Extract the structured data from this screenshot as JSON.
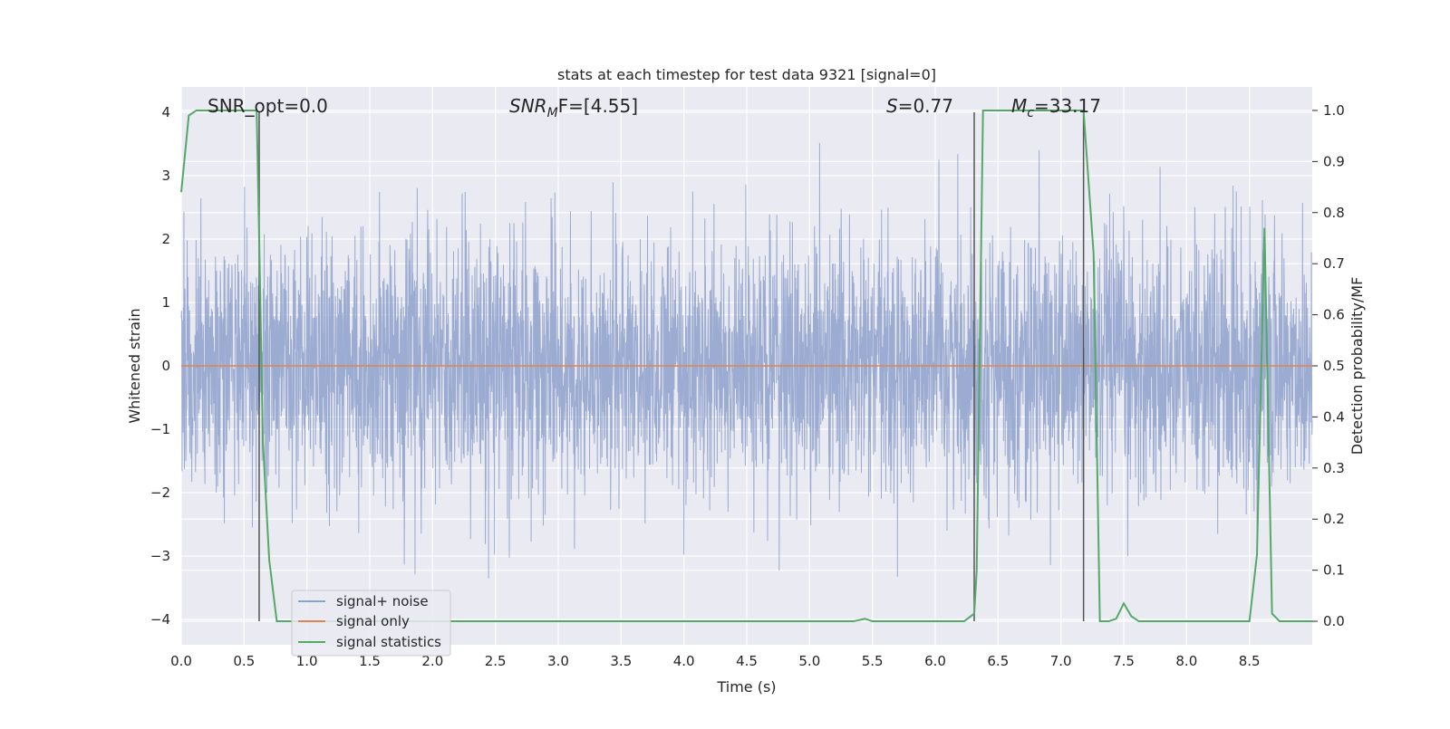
{
  "chart_data": {
    "type": "line",
    "title": "stats at each timestep for test data 9321 [signal=0]",
    "xlabel": "Time (s)",
    "ylabel": "Whitened strain",
    "ylabel_right": "Detection probability/MF",
    "xlim": [
      0,
      9
    ],
    "ylim": [
      -4.4,
      4.4
    ],
    "ylim_right": [
      -0.046,
      1.046
    ],
    "x_ticks": [
      "0.0",
      "0.5",
      "1.0",
      "1.5",
      "2.0",
      "2.5",
      "3.0",
      "3.5",
      "4.0",
      "4.5",
      "5.0",
      "5.5",
      "6.0",
      "6.5",
      "7.0",
      "7.5",
      "8.0",
      "8.5"
    ],
    "x_tick_values": [
      0,
      0.5,
      1,
      1.5,
      2,
      2.5,
      3,
      3.5,
      4,
      4.5,
      5,
      5.5,
      6,
      6.5,
      7,
      7.5,
      8,
      8.5
    ],
    "y_ticks": [
      "−4",
      "−3",
      "−2",
      "−1",
      "0",
      "1",
      "2",
      "3",
      "4"
    ],
    "y_tick_values": [
      -4,
      -3,
      -2,
      -1,
      0,
      1,
      2,
      3,
      4
    ],
    "y2_ticks": [
      "0.0",
      "0.1",
      "0.2",
      "0.3",
      "0.4",
      "0.5",
      "0.6",
      "0.7",
      "0.8",
      "0.9",
      "1.0"
    ],
    "y2_tick_values": [
      0,
      0.1,
      0.2,
      0.3,
      0.4,
      0.5,
      0.6,
      0.7,
      0.8,
      0.9,
      1.0
    ],
    "grid": true,
    "legend_position": "lower-left",
    "annotations": {
      "snr_opt": "SNR_opt=0.0",
      "snr_mf_main": "SNR",
      "snr_mf_sub": "M",
      "snr_mf_tail": "F=[4.55]",
      "s_main": "S",
      "s_tail": "=0.77",
      "mc_main": "M",
      "mc_sub": "c",
      "mc_tail": "=33.17"
    },
    "vertical_markers": [
      0.62,
      6.31,
      7.18
    ],
    "series": [
      {
        "name": "signal+ noise",
        "color": "#8da0cb",
        "axis": "left",
        "envelope": {
          "noise_sigma": 1.0,
          "max_abs": 4.0
        }
      },
      {
        "name": "signal only",
        "color": "#dd8452",
        "axis": "left",
        "x": [
          0,
          9
        ],
        "y": [
          0,
          0
        ]
      },
      {
        "name": "signal statistics",
        "color": "#55a868",
        "axis": "right",
        "x": [
          0,
          0.06,
          0.12,
          0.6,
          0.62,
          0.65,
          0.7,
          0.76,
          1.0,
          5.35,
          5.44,
          5.5,
          6.23,
          6.31,
          6.33,
          6.38,
          7.18,
          7.26,
          7.31,
          7.38,
          7.44,
          7.5,
          7.56,
          7.62,
          8.5,
          8.56,
          8.62,
          8.68,
          8.74,
          9.0
        ],
        "y": [
          0.84,
          0.99,
          1.0,
          1.0,
          0.75,
          0.35,
          0.12,
          0.0,
          0.0,
          0.0,
          0.005,
          0.0,
          0.0,
          0.015,
          0.1,
          1.0,
          1.0,
          0.72,
          0.0,
          0.0,
          0.005,
          0.035,
          0.01,
          0.0,
          0.0,
          0.13,
          0.77,
          0.015,
          0.0,
          0.0
        ]
      }
    ]
  }
}
